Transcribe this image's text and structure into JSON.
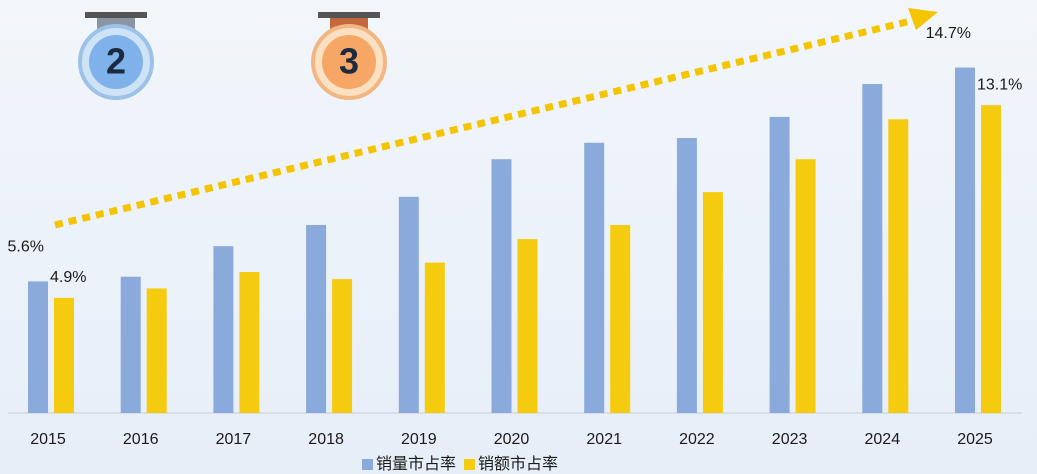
{
  "chart_data": {
    "type": "bar",
    "categories": [
      "2015",
      "2016",
      "2017",
      "2018",
      "2019",
      "2020",
      "2021",
      "2022",
      "2023",
      "2024",
      "2025"
    ],
    "series": [
      {
        "name": "销量市占率",
        "color": "#8aaadc",
        "values": [
          5.6,
          5.8,
          7.1,
          8.0,
          9.2,
          10.8,
          11.5,
          11.7,
          12.6,
          14.0,
          14.7
        ],
        "value_labels": [
          "5.6%",
          null,
          null,
          null,
          null,
          null,
          null,
          null,
          null,
          null,
          "14.7%"
        ]
      },
      {
        "name": "销额市占率",
        "color": "#f5cb0f",
        "values": [
          4.9,
          5.3,
          6.0,
          5.7,
          6.4,
          7.4,
          8.0,
          9.4,
          10.8,
          12.5,
          13.1
        ],
        "value_labels": [
          "4.9%",
          null,
          null,
          null,
          null,
          null,
          null,
          null,
          null,
          null,
          "13.1%"
        ]
      }
    ],
    "ylim": [
      0,
      16
    ]
  }
}
